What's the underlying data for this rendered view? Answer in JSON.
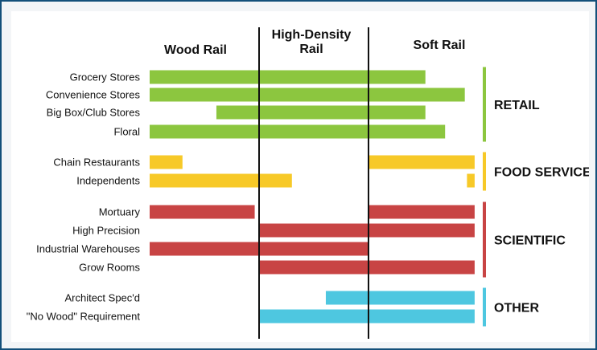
{
  "chart_data": {
    "type": "bar",
    "subtype": "range-bar",
    "columns": [
      {
        "label_line1": "Wood Rail",
        "label_line2": ""
      },
      {
        "label_line1": "High-Density",
        "label_line2": "Rail"
      },
      {
        "label_line1": "Soft Rail",
        "label_line2": ""
      }
    ],
    "x_scale": {
      "min": 0,
      "max": 3
    },
    "groups": [
      {
        "name": "RETAIL",
        "color": "#8cc63f",
        "rows": [
          {
            "label": "Grocery Stores",
            "start": 0.0,
            "end": 2.52
          },
          {
            "label": "Convenience Stores",
            "start": 0.0,
            "end": 2.88
          },
          {
            "label": "Big Box/Club Stores",
            "start": 0.61,
            "end": 2.52
          },
          {
            "label": "Floral",
            "start": 0.0,
            "end": 2.7
          }
        ]
      },
      {
        "name": "FOOD SERVICE",
        "color": "#f7c928",
        "rows": [
          {
            "label": "Chain Restaurants",
            "start": 0.0,
            "end": 0.3,
            "segments": [
              {
                "start": 0.0,
                "end": 0.3
              },
              {
                "start": 2.0,
                "end": 2.97
              }
            ]
          },
          {
            "label": "Independents",
            "start": 0.0,
            "end": 1.3,
            "segments": [
              {
                "start": 0.0,
                "end": 1.3
              },
              {
                "start": 2.9,
                "end": 2.97
              }
            ]
          }
        ]
      },
      {
        "name": "SCIENTIFIC",
        "color": "#c84444",
        "rows": [
          {
            "label": "Mortuary",
            "start": 0.0,
            "end": 0.96,
            "segments": [
              {
                "start": 0.0,
                "end": 0.96
              },
              {
                "start": 2.0,
                "end": 2.97
              }
            ]
          },
          {
            "label": "High Precision",
            "start": 1.0,
            "end": 2.97
          },
          {
            "label": "Industrial Warehouses",
            "start": 0.0,
            "end": 2.0
          },
          {
            "label": "Grow Rooms",
            "start": 1.0,
            "end": 2.97
          }
        ]
      },
      {
        "name": "OTHER",
        "color": "#4ec7e0",
        "rows": [
          {
            "label": "Architect Spec'd",
            "start": 1.61,
            "end": 2.97
          },
          {
            "label": "\"No Wood\" Requirement",
            "start": 1.0,
            "end": 2.97
          }
        ]
      }
    ]
  }
}
